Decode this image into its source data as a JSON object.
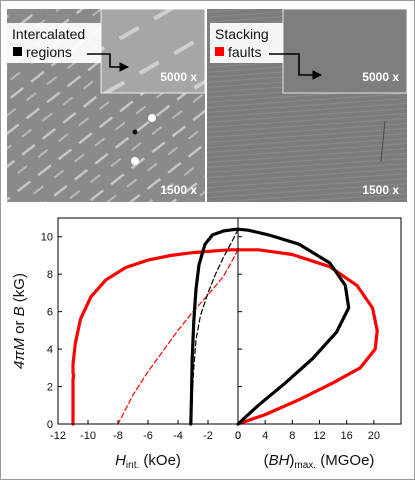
{
  "sem_panels": {
    "left_inset_magnification": "5000 x",
    "left_main_magnification": "1500 x",
    "right_inset_magnification": "5000 x",
    "right_main_magnification": "1500 x",
    "intercalated_label_line1": "Intercalated",
    "intercalated_label_line2": "regions",
    "stacking_label_line1": "Stacking",
    "stacking_label_line2": "faults",
    "intercalated_swatch_color": "#000000",
    "stacking_swatch_color": "#ff0000"
  },
  "chart_data": [
    {
      "type": "line",
      "panel": "demagnetization",
      "xlabel_italic": "H",
      "xlabel_sub": "int.",
      "xlabel_unit": " (kOe)",
      "ylabel_italic_a": "4πM",
      "ylabel_mid": " or ",
      "ylabel_italic_b": "B",
      "ylabel_unit": " (kG)",
      "xlim": [
        -12,
        0
      ],
      "ylim": [
        0,
        11
      ],
      "xticks": [
        "-12",
        "-10",
        "-8",
        "-6",
        "-4",
        "-2",
        "0"
      ],
      "yticks": [
        "0",
        "2",
        "4",
        "6",
        "8",
        "10"
      ],
      "series": [
        {
          "color": "#ff0000",
          "style": "solid",
          "points": [
            [
              0,
              9.3
            ],
            [
              -0.5,
              9.3
            ],
            [
              -1.5,
              9.25
            ],
            [
              -3,
              9.15
            ],
            [
              -4.5,
              9.0
            ],
            [
              -6,
              8.75
            ],
            [
              -7.5,
              8.35
            ],
            [
              -8.8,
              7.7
            ],
            [
              -9.8,
              6.8
            ],
            [
              -10.5,
              5.6
            ],
            [
              -10.85,
              4.3
            ],
            [
              -11.0,
              3.2
            ],
            [
              -11.0,
              2.7
            ],
            [
              -10.95,
              2.6
            ],
            [
              -11.0,
              2.4
            ],
            [
              -11.0,
              0
            ]
          ]
        },
        {
          "color": "#ff0000",
          "style": "dashed",
          "points": [
            [
              0,
              9.3
            ],
            [
              -0.5,
              8.55
            ],
            [
              -1,
              7.85
            ],
            [
              -2,
              6.9
            ],
            [
              -3,
              6.0
            ],
            [
              -4,
              5.0
            ],
            [
              -5,
              3.9
            ],
            [
              -6,
              2.8
            ],
            [
              -7,
              1.55
            ],
            [
              -8,
              0
            ]
          ]
        },
        {
          "color": "#000000",
          "style": "solid",
          "points": [
            [
              0,
              10.4
            ],
            [
              -0.3,
              10.38
            ],
            [
              -1,
              10.3
            ],
            [
              -1.7,
              10.1
            ],
            [
              -2.2,
              9.6
            ],
            [
              -2.6,
              8.5
            ],
            [
              -2.8,
              7.2
            ],
            [
              -2.95,
              5.5
            ],
            [
              -3.05,
              3.5
            ],
            [
              -3.1,
              1.5
            ],
            [
              -3.15,
              0
            ]
          ]
        },
        {
          "color": "#000000",
          "style": "dashed",
          "points": [
            [
              0,
              10.4
            ],
            [
              -0.2,
              10.05
            ],
            [
              -0.5,
              9.6
            ],
            [
              -1,
              8.85
            ],
            [
              -1.5,
              8.0
            ],
            [
              -2,
              7.0
            ],
            [
              -2.5,
              5.8
            ],
            [
              -2.8,
              4.5
            ],
            [
              -2.95,
              3.0
            ],
            [
              -3.05,
              1.5
            ],
            [
              -3.1,
              0
            ]
          ]
        }
      ]
    },
    {
      "type": "line",
      "panel": "energy-product",
      "xlabel_pre": "(",
      "xlabel_italic": "BH",
      "xlabel_post": ")",
      "xlabel_sub": "max.",
      "xlabel_unit": " (MGOe)",
      "xlim": [
        0,
        24
      ],
      "ylim": [
        0,
        11
      ],
      "xticks": [
        "0",
        "4",
        "8",
        "12",
        "16",
        "20"
      ],
      "series": [
        {
          "color": "#ff0000",
          "style": "solid",
          "points": [
            [
              0,
              0
            ],
            [
              4,
              0.5
            ],
            [
              9,
              1.3
            ],
            [
              14,
              2.2
            ],
            [
              18,
              3.0
            ],
            [
              20.2,
              4.0
            ],
            [
              20.5,
              5.0
            ],
            [
              19.8,
              6.2
            ],
            [
              17.5,
              7.4
            ],
            [
              13.5,
              8.4
            ],
            [
              8,
              9.05
            ],
            [
              3,
              9.3
            ],
            [
              0,
              9.3
            ]
          ]
        },
        {
          "color": "#000000",
          "style": "solid",
          "points": [
            [
              0,
              0
            ],
            [
              3,
              1.0
            ],
            [
              7,
              2.2
            ],
            [
              11,
              3.5
            ],
            [
              14.5,
              4.9
            ],
            [
              16.3,
              6.2
            ],
            [
              15.8,
              7.4
            ],
            [
              13.5,
              8.6
            ],
            [
              9,
              9.6
            ],
            [
              4.5,
              10.1
            ],
            [
              1.5,
              10.35
            ],
            [
              0,
              10.4
            ]
          ]
        }
      ]
    }
  ]
}
